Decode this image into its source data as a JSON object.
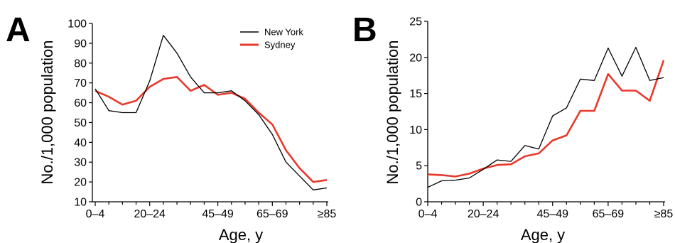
{
  "chart_data": [
    {
      "type": "line",
      "panel_label": "A",
      "xlabel": "Age, y",
      "ylabel": "No./1,000 population",
      "x_tick_labels": [
        "0–4",
        "20–24",
        "45–49",
        "65–69",
        "≥85"
      ],
      "y_ticks": [
        10,
        20,
        30,
        40,
        50,
        60,
        70,
        80,
        90,
        100
      ],
      "ylim": [
        10,
        100
      ],
      "grid": false,
      "legend_position": "top-right",
      "series": [
        {
          "name": "New York",
          "color": "#000000",
          "values": [
            67,
            56,
            55,
            55,
            71,
            94,
            85,
            73,
            65,
            65,
            66,
            61,
            54,
            44,
            30,
            23,
            16,
            17
          ]
        },
        {
          "name": "Sydney",
          "color": "#e8392a",
          "values": [
            66,
            63,
            59,
            61,
            68,
            72,
            73,
            66,
            69,
            64,
            65,
            62,
            55,
            49,
            36,
            27,
            20,
            21
          ]
        }
      ]
    },
    {
      "type": "line",
      "panel_label": "B",
      "xlabel": "Age, y",
      "ylabel": "No./1,000 population",
      "x_tick_labels": [
        "0–4",
        "20–24",
        "45–49",
        "65–69",
        "≥85"
      ],
      "y_ticks": [
        0,
        5,
        10,
        15,
        20,
        25
      ],
      "ylim": [
        0,
        25
      ],
      "grid": false,
      "series": [
        {
          "name": "New York",
          "color": "#000000",
          "values": [
            2.0,
            2.9,
            3.0,
            3.3,
            4.5,
            5.8,
            5.6,
            7.8,
            7.3,
            11.9,
            13.0,
            17.0,
            16.8,
            21.3,
            17.4,
            21.4,
            16.8,
            17.2
          ]
        },
        {
          "name": "Sydney",
          "color": "#e8392a",
          "values": [
            3.8,
            3.7,
            3.5,
            3.9,
            4.6,
            5.1,
            5.2,
            6.3,
            6.7,
            8.5,
            9.2,
            12.6,
            12.6,
            17.7,
            15.4,
            15.4,
            14.0,
            19.6
          ]
        }
      ]
    }
  ]
}
